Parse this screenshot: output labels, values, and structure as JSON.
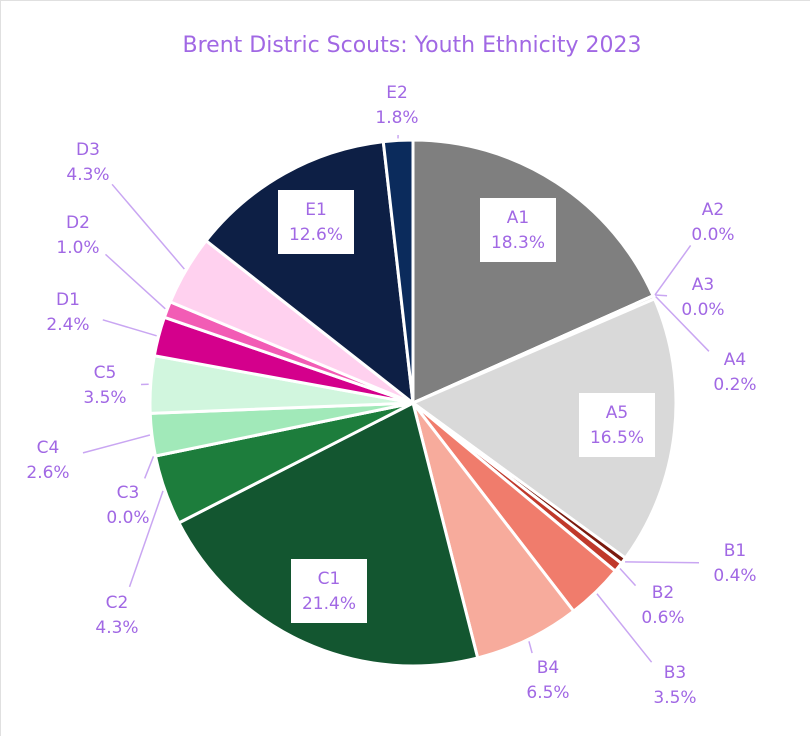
{
  "chart_data": {
    "type": "pie",
    "title": "Brent Distric Scouts: Youth Ethnicity 2023",
    "categories": [
      "A1",
      "A2",
      "A3",
      "A4",
      "A5",
      "B1",
      "B2",
      "B3",
      "B4",
      "C1",
      "C2",
      "C3",
      "C4",
      "C5",
      "D1",
      "D2",
      "D3",
      "E1",
      "E2"
    ],
    "values": [
      18.3,
      0.0,
      0.0,
      0.2,
      16.5,
      0.4,
      0.6,
      3.5,
      6.5,
      21.4,
      4.3,
      0.0,
      2.6,
      3.5,
      2.4,
      1.0,
      4.3,
      12.6,
      1.8
    ],
    "value_labels": [
      "18.3%",
      "0.0%",
      "0.0%",
      "0.2%",
      "16.5%",
      "0.4%",
      "0.6%",
      "3.5%",
      "6.5%",
      "21.4%",
      "4.3%",
      "0.0%",
      "2.6%",
      "3.5%",
      "2.4%",
      "1.0%",
      "4.3%",
      "12.6%",
      "1.8%"
    ],
    "colors": [
      "#7f7f7f",
      "#a6a6a6",
      "#bfbfbf",
      "#cccccc",
      "#d9d9d9",
      "#7b1a0e",
      "#c0392b",
      "#f07c6c",
      "#f7ab9c",
      "#135630",
      "#1d7d3c",
      "#2f9b55",
      "#a1e9b9",
      "#d1f6de",
      "#d4008c",
      "#f25cb5",
      "#ffd1ef",
      "#0d1f45",
      "#0b2b5c"
    ]
  }
}
